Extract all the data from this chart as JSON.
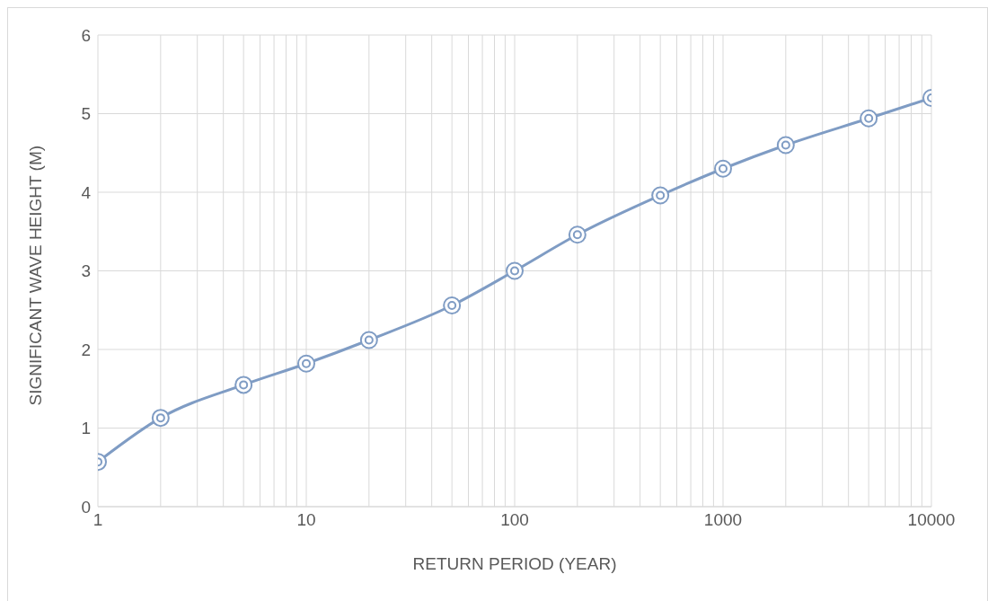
{
  "chart_data": {
    "type": "line",
    "xlabel": "RETURN PERIOD (YEAR)",
    "ylabel": "SIGNIFICANT WAVE HEIGHT (M)",
    "x": [
      1,
      2,
      5,
      10,
      20,
      50,
      100,
      200,
      500,
      1000,
      2000,
      5000,
      10000
    ],
    "series": [
      {
        "color": "#7f9cc4",
        "values": [
          0.57,
          1.13,
          1.55,
          1.82,
          2.12,
          2.56,
          3.0,
          3.46,
          3.96,
          4.3,
          4.6,
          4.94,
          5.2
        ]
      }
    ],
    "log": "x",
    "xlim": [
      1,
      10000
    ],
    "xticks": [
      1,
      {
        "value": 2,
        "label": null
      },
      {
        "value": 3,
        "label": null
      },
      {
        "value": 4,
        "label": null
      },
      {
        "value": 5,
        "label": null
      },
      {
        "value": 6,
        "label": null
      },
      {
        "value": 7,
        "label": null
      },
      {
        "value": 8,
        "label": null
      },
      {
        "value": 9,
        "label": null
      },
      10,
      {
        "value": 20,
        "label": null
      },
      {
        "value": 30,
        "label": null
      },
      {
        "value": 40,
        "label": null
      },
      {
        "value": 50,
        "label": null
      },
      {
        "value": 60,
        "label": null
      },
      {
        "value": 70,
        "label": null
      },
      {
        "value": 80,
        "label": null
      },
      {
        "value": 90,
        "label": null
      },
      100,
      {
        "value": 200,
        "label": null
      },
      {
        "value": 300,
        "label": null
      },
      {
        "value": 400,
        "label": null
      },
      {
        "value": 500,
        "label": null
      },
      {
        "value": 600,
        "label": null
      },
      {
        "value": 700,
        "label": null
      },
      {
        "value": 800,
        "label": null
      },
      {
        "value": 900,
        "label": null
      },
      1000,
      {
        "value": 2000,
        "label": null
      },
      {
        "value": 3000,
        "label": null
      },
      {
        "value": 4000,
        "label": null
      },
      {
        "value": 5000,
        "label": null
      },
      {
        "value": 6000,
        "label": null
      },
      {
        "value": 7000,
        "label": null
      },
      {
        "value": 8000,
        "label": null
      },
      {
        "value": 9000,
        "label": null
      },
      10000
    ],
    "ylim": [
      0,
      6
    ],
    "yticks": [
      0,
      1,
      2,
      3,
      4,
      5,
      6
    ],
    "grid": true,
    "marker": "circle",
    "line_style": "solid",
    "legend": false
  }
}
